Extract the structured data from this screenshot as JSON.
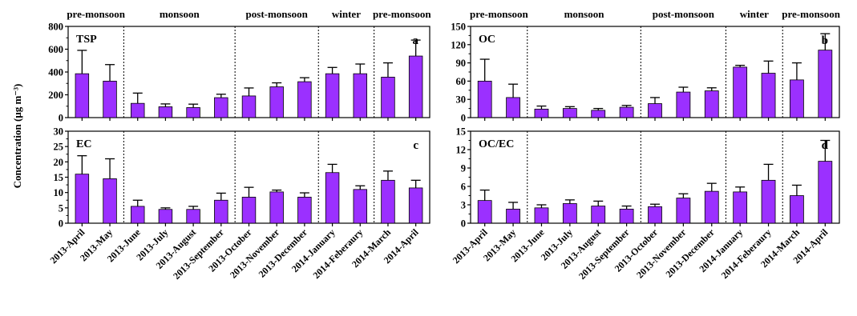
{
  "colors": {
    "bar": "#9b30ff",
    "bar_stroke": "#000000",
    "axis": "#000000",
    "divider": "#000000"
  },
  "y_axis_label": "Concentration (μg m⁻³)",
  "chart_data": [
    {
      "type": "bar",
      "panel_label": "TSP",
      "panel_letter": "a",
      "categories": [
        "2013-April",
        "2013-May",
        "2013-June",
        "2013-July",
        "2013-August",
        "2013-September",
        "2013-October",
        "2013-November",
        "2013-December",
        "2014-January",
        "2014-Feberaury",
        "2014-March",
        "2014-April"
      ],
      "values": [
        385,
        320,
        125,
        95,
        88,
        175,
        190,
        270,
        315,
        385,
        385,
        355,
        540
      ],
      "errors": [
        205,
        145,
        90,
        25,
        30,
        30,
        70,
        35,
        35,
        55,
        85,
        125,
        140
      ],
      "ylim": [
        0,
        800
      ],
      "yticks": [
        0,
        200,
        400,
        600,
        800
      ],
      "seasons": [
        "pre-monsoon",
        "monsoon",
        "post-monsoon",
        "winter",
        "pre-monsoon"
      ],
      "dividers_after": [
        1,
        5,
        8,
        10
      ]
    },
    {
      "type": "bar",
      "panel_label": "EC",
      "panel_letter": "c",
      "categories": [
        "2013-April",
        "2013-May",
        "2013-June",
        "2013-July",
        "2013-August",
        "2013-September",
        "2013-October",
        "2013-November",
        "2013-December",
        "2014-January",
        "2014-Feberaury",
        "2014-March",
        "2014-April"
      ],
      "values": [
        16,
        14.5,
        5.5,
        4.5,
        4.5,
        7.5,
        8.5,
        10.2,
        8.5,
        16.5,
        11,
        14,
        11.5
      ],
      "errors": [
        6,
        6.5,
        2,
        0.5,
        1,
        2.3,
        3.2,
        0.6,
        1.4,
        2.7,
        1.2,
        3,
        2.5
      ],
      "ylim": [
        0,
        30
      ],
      "yticks": [
        0,
        5,
        10,
        15,
        20,
        25,
        30
      ],
      "dividers_after": [
        1,
        5,
        8,
        10
      ]
    },
    {
      "type": "bar",
      "panel_label": "OC",
      "panel_letter": "b",
      "categories": [
        "2013-April",
        "2013-May",
        "2013-June",
        "2013-July",
        "2013-August",
        "2013-September",
        "2013-October",
        "2013-November",
        "2013-December",
        "2014-January",
        "2014-Feberaury",
        "2014-March",
        "2014-April"
      ],
      "values": [
        60,
        33,
        14,
        15,
        12,
        17,
        23,
        42,
        44,
        83,
        73,
        62,
        111
      ],
      "errors": [
        36,
        22,
        5,
        3,
        3,
        3,
        10,
        8,
        5,
        3,
        20,
        28,
        27
      ],
      "ylim": [
        0,
        150
      ],
      "yticks": [
        0,
        30,
        60,
        90,
        120,
        150
      ],
      "seasons": [
        "pre-monsoon",
        "monsoon",
        "post-monsoon",
        "winter",
        "pre-monsoon"
      ],
      "dividers_after": [
        1,
        5,
        8,
        10
      ]
    },
    {
      "type": "bar",
      "panel_label": "OC/EC",
      "panel_letter": "d",
      "categories": [
        "2013-April",
        "2013-May",
        "2013-June",
        "2013-July",
        "2013-August",
        "2013-September",
        "2013-October",
        "2013-November",
        "2013-December",
        "2014-January",
        "2014-Feberaury",
        "2014-March",
        "2014-April"
      ],
      "values": [
        3.7,
        2.3,
        2.5,
        3.2,
        2.8,
        2.3,
        2.7,
        4.1,
        5.2,
        5.1,
        7,
        4.5,
        10.1
      ],
      "errors": [
        1.7,
        1.1,
        0.5,
        0.6,
        0.8,
        0.5,
        0.4,
        0.7,
        1.3,
        0.8,
        2.6,
        1.7,
        3.4
      ],
      "ylim": [
        0,
        15
      ],
      "yticks": [
        0,
        3,
        6,
        9,
        12,
        15
      ],
      "dividers_after": [
        1,
        5,
        8,
        10
      ]
    }
  ]
}
